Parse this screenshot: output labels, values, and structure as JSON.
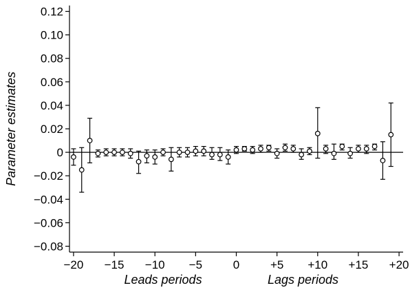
{
  "chart_data": {
    "type": "scatter",
    "title": "",
    "ylabel": "Parameter estimates",
    "xlabels": [
      "Leads periods",
      "Lags periods"
    ],
    "xlim": [
      -20.5,
      20.5
    ],
    "ylim": [
      -0.085,
      0.125
    ],
    "x_ticks": [
      {
        "value": -20,
        "label": "−20"
      },
      {
        "value": -15,
        "label": "−15"
      },
      {
        "value": -10,
        "label": "−10"
      },
      {
        "value": -5,
        "label": "−5"
      },
      {
        "value": 0,
        "label": "0"
      },
      {
        "value": 5,
        "label": "+5"
      },
      {
        "value": 10,
        "label": "+10"
      },
      {
        "value": 15,
        "label": "+15"
      },
      {
        "value": 20,
        "label": "+20"
      }
    ],
    "y_ticks": [
      {
        "value": 0.12,
        "label": "0.12"
      },
      {
        "value": 0.1,
        "label": "0.10"
      },
      {
        "value": 0.08,
        "label": "0.08"
      },
      {
        "value": 0.06,
        "label": "0.06"
      },
      {
        "value": 0.04,
        "label": "0.04"
      },
      {
        "value": 0.02,
        "label": "0.02"
      },
      {
        "value": 0,
        "label": "0"
      },
      {
        "value": -0.02,
        "label": "−0.02"
      },
      {
        "value": -0.04,
        "label": "−0.04"
      },
      {
        "value": -0.06,
        "label": "−0.06"
      },
      {
        "value": -0.08,
        "label": "−0.08"
      }
    ],
    "reference_line_y": 0,
    "grid": false,
    "legend": "none",
    "marker": "hollow-circle",
    "color": "#000000",
    "points": [
      {
        "x": -20,
        "y": -0.004,
        "lo": -0.011,
        "hi": 0.003
      },
      {
        "x": -19,
        "y": -0.015,
        "lo": -0.034,
        "hi": 0.004
      },
      {
        "x": -18,
        "y": 0.01,
        "lo": -0.009,
        "hi": 0.029
      },
      {
        "x": -17,
        "y": -0.001,
        "lo": -0.004,
        "hi": 0.002
      },
      {
        "x": -16,
        "y": 0.0,
        "lo": -0.003,
        "hi": 0.003
      },
      {
        "x": -15,
        "y": 0.0,
        "lo": -0.003,
        "hi": 0.003
      },
      {
        "x": -14,
        "y": 0.0,
        "lo": -0.003,
        "hi": 0.003
      },
      {
        "x": -13,
        "y": -0.001,
        "lo": -0.005,
        "hi": 0.003
      },
      {
        "x": -12,
        "y": -0.008,
        "lo": -0.018,
        "hi": 0.001
      },
      {
        "x": -11,
        "y": -0.003,
        "lo": -0.009,
        "hi": 0.002
      },
      {
        "x": -10,
        "y": -0.004,
        "lo": -0.01,
        "hi": 0.002
      },
      {
        "x": -9,
        "y": 0.0,
        "lo": -0.003,
        "hi": 0.003
      },
      {
        "x": -8,
        "y": -0.006,
        "lo": -0.016,
        "hi": 0.004
      },
      {
        "x": -7,
        "y": 0.0,
        "lo": -0.004,
        "hi": 0.004
      },
      {
        "x": -6,
        "y": 0.0,
        "lo": -0.004,
        "hi": 0.004
      },
      {
        "x": -5,
        "y": 0.001,
        "lo": -0.003,
        "hi": 0.005
      },
      {
        "x": -4,
        "y": 0.001,
        "lo": -0.003,
        "hi": 0.005
      },
      {
        "x": -3,
        "y": -0.002,
        "lo": -0.006,
        "hi": 0.004
      },
      {
        "x": -2,
        "y": -0.002,
        "lo": -0.007,
        "hi": 0.004
      },
      {
        "x": -1,
        "y": -0.004,
        "lo": -0.01,
        "hi": 0.002
      },
      {
        "x": 0,
        "y": 0.002,
        "lo": -0.001,
        "hi": 0.005
      },
      {
        "x": 1,
        "y": 0.003,
        "lo": 0.001,
        "hi": 0.005
      },
      {
        "x": 2,
        "y": 0.002,
        "lo": -0.001,
        "hi": 0.005
      },
      {
        "x": 3,
        "y": 0.003,
        "lo": 0.0,
        "hi": 0.006
      },
      {
        "x": 4,
        "y": 0.004,
        "lo": 0.001,
        "hi": 0.006
      },
      {
        "x": 5,
        "y": -0.001,
        "lo": -0.005,
        "hi": 0.003
      },
      {
        "x": 6,
        "y": 0.004,
        "lo": 0.001,
        "hi": 0.007
      },
      {
        "x": 7,
        "y": 0.003,
        "lo": 0.0,
        "hi": 0.006
      },
      {
        "x": 8,
        "y": -0.002,
        "lo": -0.006,
        "hi": 0.003
      },
      {
        "x": 9,
        "y": 0.001,
        "lo": -0.002,
        "hi": 0.004
      },
      {
        "x": 10,
        "y": 0.016,
        "lo": -0.005,
        "hi": 0.038
      },
      {
        "x": 11,
        "y": 0.003,
        "lo": -0.001,
        "hi": 0.006
      },
      {
        "x": 12,
        "y": -0.001,
        "lo": -0.006,
        "hi": 0.007
      },
      {
        "x": 13,
        "y": 0.005,
        "lo": 0.002,
        "hi": 0.007
      },
      {
        "x": 14,
        "y": -0.001,
        "lo": -0.005,
        "hi": 0.004
      },
      {
        "x": 15,
        "y": 0.003,
        "lo": 0.0,
        "hi": 0.006
      },
      {
        "x": 16,
        "y": 0.003,
        "lo": -0.001,
        "hi": 0.006
      },
      {
        "x": 17,
        "y": 0.005,
        "lo": 0.002,
        "hi": 0.007
      },
      {
        "x": 18,
        "y": -0.007,
        "lo": -0.023,
        "hi": 0.009
      },
      {
        "x": 19,
        "y": 0.015,
        "lo": -0.012,
        "hi": 0.042
      }
    ]
  }
}
